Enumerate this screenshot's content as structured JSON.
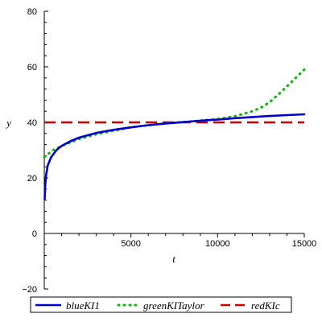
{
  "chart_data": {
    "type": "line",
    "xlabel": "t",
    "ylabel": "y",
    "xlim": [
      0,
      15000
    ],
    "ylim": [
      -20,
      80
    ],
    "x_ticks": [
      5000,
      10000,
      15000
    ],
    "y_ticks": [
      -20,
      20,
      40,
      60,
      80
    ],
    "x_tick_labels": [
      "5000",
      "10000",
      "15000"
    ],
    "y_tick_labels": [
      "−20",
      "20",
      "40",
      "60",
      "80"
    ],
    "zero_label": "0",
    "grid": false,
    "legend_position": "bottom",
    "series": [
      {
        "name": "blueKI1",
        "color": "#0000cc",
        "style": "solid",
        "x": [
          25,
          50,
          100,
          200,
          400,
          700,
          1000,
          1500,
          2000,
          3000,
          4000,
          5000,
          6000,
          7000,
          8000,
          9000,
          10000,
          11000,
          12000,
          13000,
          14000,
          15000
        ],
        "y": [
          12.5,
          17,
          21,
          24.5,
          27.5,
          30,
          31.5,
          33.2,
          34.5,
          36.2,
          37.3,
          38.2,
          39,
          39.6,
          40.1,
          40.6,
          41.0,
          41.5,
          41.9,
          42.3,
          42.6,
          42.9
        ]
      },
      {
        "name": "greenKITaylor",
        "color": "#00bb00",
        "style": "dotted",
        "x": [
          0,
          500,
          1000,
          2000,
          3000,
          4000,
          5000,
          6000,
          7000,
          8000,
          9000,
          10000,
          11000,
          12000,
          12500,
          13000,
          13500,
          14000,
          14500,
          15000
        ],
        "y": [
          27.5,
          30,
          31.5,
          34,
          35.7,
          37,
          38.2,
          39,
          39.6,
          40.1,
          40.6,
          41.2,
          42.2,
          44,
          45.3,
          47.3,
          50,
          53,
          56,
          59
        ]
      },
      {
        "name": "redKIc",
        "color": "#cc0000",
        "style": "dashed",
        "x": [
          0,
          15000
        ],
        "y": [
          40,
          40
        ]
      }
    ]
  }
}
